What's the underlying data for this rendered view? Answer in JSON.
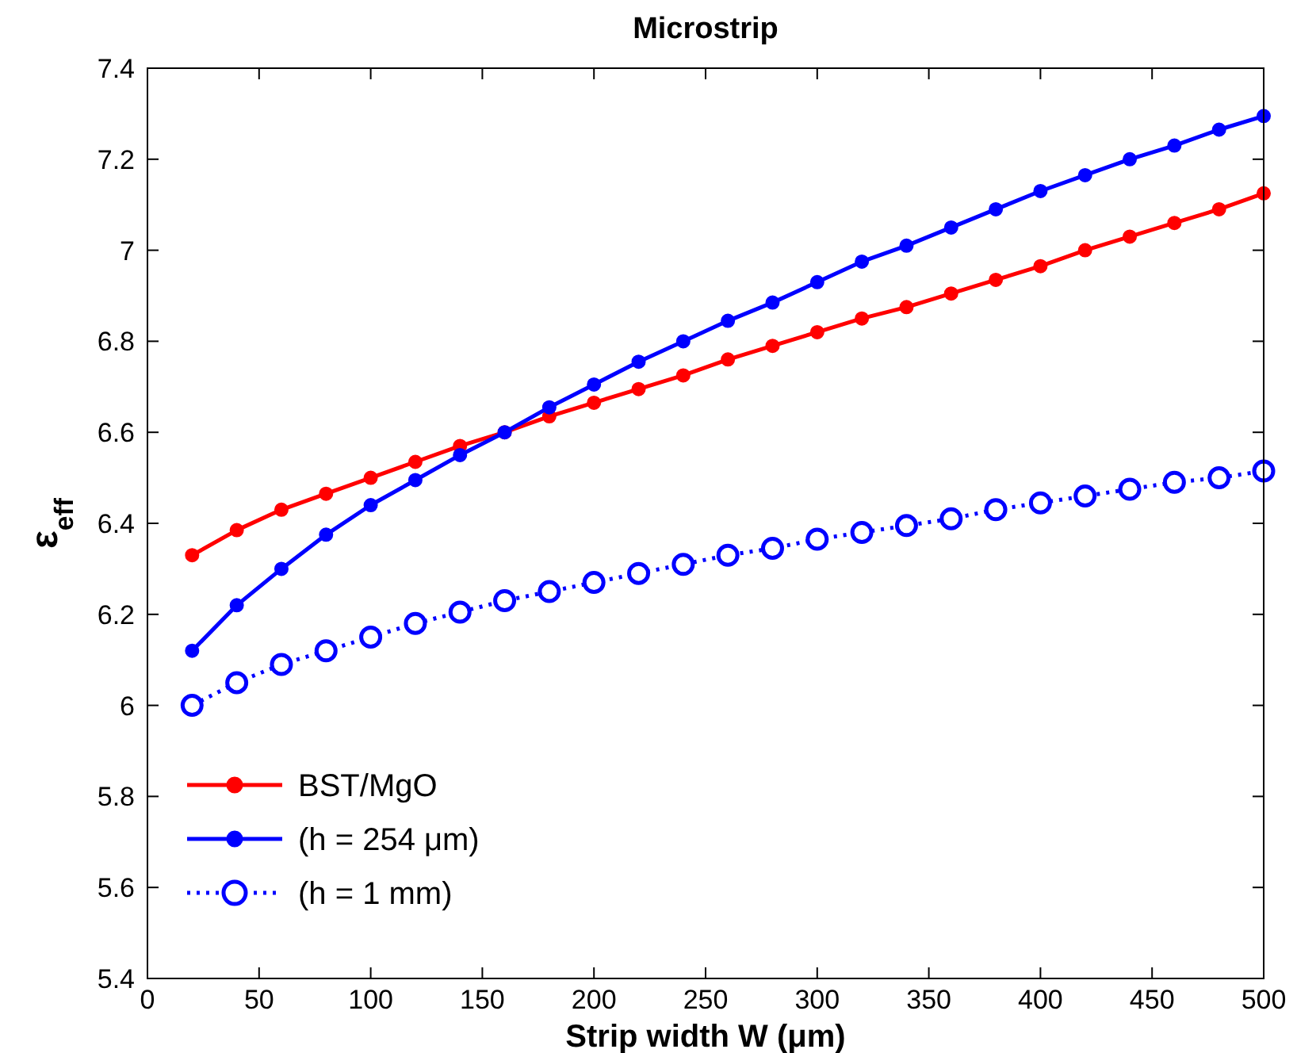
{
  "chart_data": {
    "type": "line",
    "title": "Microstrip",
    "xlabel": "Strip width W (μm)",
    "ylabel": "ε$_{eff}$",
    "x": [
      20,
      40,
      60,
      80,
      100,
      120,
      140,
      160,
      180,
      200,
      220,
      240,
      260,
      280,
      300,
      320,
      340,
      360,
      380,
      400,
      420,
      440,
      460,
      480,
      500
    ],
    "series": [
      {
        "name": "BST/MgO",
        "color": "#ff0000",
        "marker": "circle",
        "line_style": "solid",
        "values": [
          6.33,
          6.385,
          6.43,
          6.465,
          6.5,
          6.535,
          6.57,
          6.6,
          6.635,
          6.665,
          6.695,
          6.725,
          6.76,
          6.79,
          6.82,
          6.85,
          6.875,
          6.905,
          6.935,
          6.965,
          7.0,
          7.03,
          7.06,
          7.09,
          7.125
        ]
      },
      {
        "name": "(h = 254 μm)",
        "color": "#0000ff",
        "marker": "circle",
        "line_style": "solid",
        "values": [
          6.12,
          6.22,
          6.3,
          6.375,
          6.44,
          6.495,
          6.55,
          6.6,
          6.655,
          6.705,
          6.755,
          6.8,
          6.845,
          6.885,
          6.93,
          6.975,
          7.01,
          7.05,
          7.09,
          7.13,
          7.165,
          7.2,
          7.23,
          7.265,
          7.295
        ]
      },
      {
        "name": "(h = 1 mm)",
        "color": "#0000ff",
        "marker": "circle",
        "line_style": "dotted",
        "values": [
          6.0,
          6.05,
          6.09,
          6.12,
          6.15,
          6.18,
          6.205,
          6.23,
          6.25,
          6.27,
          6.29,
          6.31,
          6.33,
          6.345,
          6.365,
          6.38,
          6.395,
          6.41,
          6.43,
          6.445,
          6.46,
          6.475,
          6.49,
          6.5,
          6.515
        ]
      }
    ],
    "xlim": [
      0,
      500
    ],
    "xticks": [
      0,
      50,
      100,
      150,
      200,
      250,
      300,
      350,
      400,
      450,
      500
    ],
    "ylim": [
      5.4,
      7.4
    ],
    "yticks": [
      5.4,
      5.6,
      5.8,
      6,
      6.2,
      6.4,
      6.6,
      6.8,
      7,
      7.2,
      7.4
    ],
    "grid": false,
    "legend": "bottom left"
  }
}
